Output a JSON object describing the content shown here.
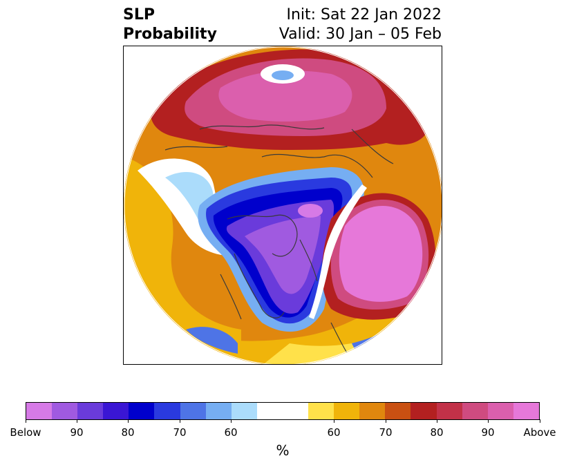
{
  "title": {
    "left_line1": "SLP",
    "left_line2": "Probability",
    "right_line1": "Init: Sat 22 Jan 2022",
    "right_line2": "Valid: 30 Jan – 05 Feb"
  },
  "map": {
    "projection": "north-polar-stereographic",
    "fill_color": "#ffffff",
    "coastline_color": "#3a3a3a"
  },
  "colorbar": {
    "colors": [
      "#d67ae6",
      "#a05ae0",
      "#6a3bdb",
      "#3a16d4",
      "#0000cc",
      "#2a3adf",
      "#4e74e6",
      "#76aef2",
      "#abdcfb",
      "#ffffff",
      "#ffffff",
      "#ffe14a",
      "#f0b40a",
      "#e0870e",
      "#c95012",
      "#b32020",
      "#c23148",
      "#cf4b80",
      "#db5fad",
      "#e678d9"
    ],
    "ticks": [
      {
        "label": "Below"
      },
      {
        "label": "90"
      },
      {
        "label": "80"
      },
      {
        "label": "70"
      },
      {
        "label": "60"
      },
      {
        "label": "60"
      },
      {
        "label": "70"
      },
      {
        "label": "80"
      },
      {
        "label": "90"
      },
      {
        "label": "Above"
      }
    ],
    "unit": "%"
  }
}
